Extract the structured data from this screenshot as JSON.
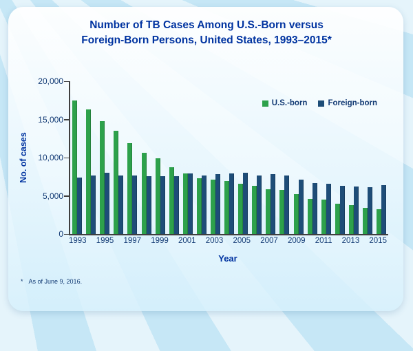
{
  "title": {
    "line1": "Number of TB Cases Among U.S.-Born versus",
    "line2": "Foreign-Born Persons, United States, 1993–2015*"
  },
  "y_axis": {
    "label": "No. of cases",
    "ticks": [
      "0",
      "5,000",
      "10,000",
      "15,000",
      "20,000"
    ]
  },
  "x_axis": {
    "label": "Year",
    "tick_years": [
      "1993",
      "1995",
      "1997",
      "1999",
      "2001",
      "2003",
      "2005",
      "2007",
      "2009",
      "2011",
      "2013",
      "2015"
    ]
  },
  "legend": {
    "items": [
      {
        "label": "U.S.-born",
        "color": "#2da14b"
      },
      {
        "label": "Foreign-born",
        "color": "#1e4d78"
      }
    ]
  },
  "footnote": {
    "star": "*",
    "text": "As of June 9, 2016."
  },
  "colors": {
    "title_blue": "#0033a0",
    "tick_text": "#123a74",
    "background": "#c6e7f6",
    "us_born_green": "#2da14b",
    "foreign_born_navy": "#1e4d78"
  },
  "chart_data": {
    "type": "bar",
    "title": "Number of TB Cases Among U.S.-Born versus Foreign-Born Persons, United States, 1993–2015*",
    "xlabel": "Year",
    "ylabel": "No. of cases",
    "ylim": [
      0,
      20000
    ],
    "ytick_step": 5000,
    "grid": false,
    "legend_position": "inside top-right",
    "categories": [
      "1993",
      "1994",
      "1995",
      "1996",
      "1997",
      "1998",
      "1999",
      "2000",
      "2001",
      "2002",
      "2003",
      "2004",
      "2005",
      "2006",
      "2007",
      "2008",
      "2009",
      "2010",
      "2011",
      "2012",
      "2013",
      "2014",
      "2015"
    ],
    "series": [
      {
        "name": "U.S.-born",
        "color": "#2da14b",
        "values": [
          17500,
          16300,
          14800,
          13500,
          11900,
          10600,
          9900,
          8700,
          7900,
          7300,
          7100,
          6900,
          6600,
          6300,
          5900,
          5800,
          5200,
          4600,
          4500,
          4000,
          3800,
          3400,
          3200
        ]
      },
      {
        "name": "Foreign-born",
        "color": "#1e4d78",
        "values": [
          7400,
          7700,
          8000,
          7700,
          7700,
          7600,
          7600,
          7600,
          7900,
          7700,
          7800,
          7900,
          8000,
          7700,
          7800,
          7700,
          7100,
          6700,
          6600,
          6300,
          6200,
          6100,
          6400
        ]
      }
    ],
    "footnote": "* As of June 9, 2016."
  }
}
